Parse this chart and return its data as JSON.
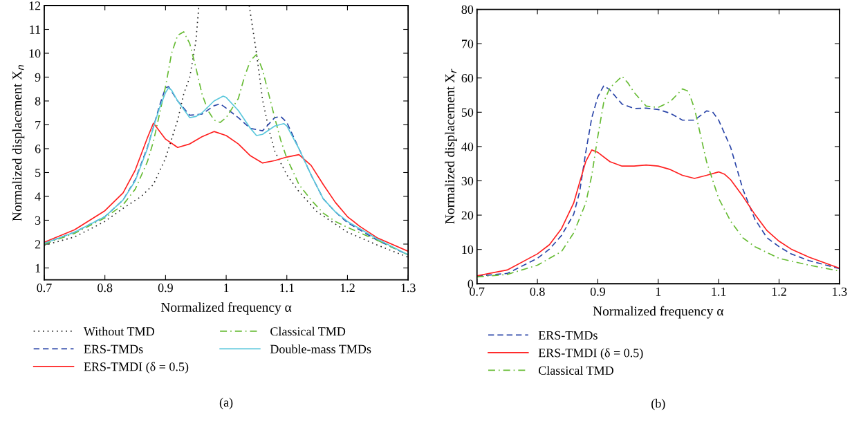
{
  "chart_data": [
    {
      "type": "line",
      "xlabel": "Normalized frequency α",
      "ylabel": "Normalized displacement X$_{n}$",
      "xlim": [
        0.7,
        1.3
      ],
      "ylim": [
        0.5,
        12
      ],
      "xticks": [
        {
          "value": 0.7,
          "label": "0.7"
        },
        {
          "value": 0.8,
          "label": "0.8"
        },
        {
          "value": 0.9,
          "label": "0.9"
        },
        1,
        {
          "value": 1.1,
          "label": "1.1"
        },
        {
          "value": 1.2,
          "label": "1.2"
        },
        {
          "value": 1.3,
          "label": "1.3"
        }
      ],
      "yticks": [
        1,
        2,
        3,
        4,
        5,
        6,
        7,
        8,
        9,
        10,
        11,
        12
      ],
      "grid": false,
      "legend": "bottom",
      "annotations": [
        "(a)"
      ],
      "series": [
        {
          "name": "Without TMD",
          "color": "#222222",
          "line_style": "dotted",
          "x": [
            0.7,
            0.75,
            0.8,
            0.83,
            0.86,
            0.88,
            0.9,
            0.92,
            0.93,
            0.94,
            0.95,
            0.955,
            1.0,
            1.038,
            1.05,
            1.06,
            1.07,
            1.08,
            1.1,
            1.12,
            1.15,
            1.2,
            1.25,
            1.3
          ],
          "values": [
            1.95,
            2.3,
            2.95,
            3.5,
            4.0,
            4.5,
            5.6,
            7.2,
            8.3,
            9.0,
            10.5,
            12,
            null,
            12,
            10,
            8.05,
            6.85,
            5.9,
            4.9,
            4.2,
            3.35,
            2.5,
            1.95,
            1.45
          ]
        },
        {
          "name": "ERS-TMDs",
          "color": "#2a45a8",
          "line_style": "dashed",
          "x": [
            0.7,
            0.75,
            0.8,
            0.83,
            0.85,
            0.87,
            0.88,
            0.89,
            0.9,
            0.905,
            0.92,
            0.94,
            0.96,
            0.98,
            0.99,
            1.0,
            1.02,
            1.04,
            1.06,
            1.08,
            1.09,
            1.1,
            1.12,
            1.14,
            1.16,
            1.18,
            1.2,
            1.25,
            1.3
          ],
          "values": [
            2.03,
            2.5,
            3.15,
            3.85,
            4.7,
            6.05,
            6.9,
            7.8,
            8.55,
            8.6,
            8.0,
            7.4,
            7.45,
            7.8,
            7.88,
            7.7,
            7.3,
            6.85,
            6.75,
            7.3,
            7.35,
            7.1,
            6.0,
            4.9,
            3.9,
            3.35,
            2.9,
            2.15,
            1.55
          ]
        },
        {
          "name": "ERS-TMDI (δ = 0.5)",
          "color": "#ff2020",
          "line_style": "solid",
          "x": [
            0.7,
            0.75,
            0.8,
            0.83,
            0.85,
            0.87,
            0.88,
            0.9,
            0.92,
            0.94,
            0.96,
            0.98,
            1.0,
            1.02,
            1.04,
            1.06,
            1.08,
            1.1,
            1.12,
            1.14,
            1.16,
            1.18,
            1.2,
            1.22,
            1.25,
            1.3
          ],
          "values": [
            2.08,
            2.6,
            3.4,
            4.15,
            5.1,
            6.45,
            7.07,
            6.4,
            6.05,
            6.2,
            6.5,
            6.72,
            6.55,
            6.2,
            5.7,
            5.4,
            5.5,
            5.65,
            5.75,
            5.3,
            4.5,
            3.75,
            3.15,
            2.75,
            2.25,
            1.7
          ]
        },
        {
          "name": "Classical TMD",
          "color": "#66bb33",
          "line_style": "dashdot",
          "x": [
            0.7,
            0.75,
            0.8,
            0.83,
            0.85,
            0.87,
            0.88,
            0.89,
            0.9,
            0.91,
            0.92,
            0.93,
            0.94,
            0.95,
            0.96,
            0.97,
            0.98,
            0.99,
            1.0,
            1.02,
            1.03,
            1.04,
            1.05,
            1.06,
            1.07,
            1.08,
            1.09,
            1.1,
            1.12,
            1.14,
            1.16,
            1.18,
            1.2,
            1.25,
            1.3
          ],
          "values": [
            2.0,
            2.45,
            3.1,
            3.65,
            4.3,
            5.45,
            6.3,
            7.45,
            8.6,
            10.0,
            10.75,
            10.9,
            10.4,
            9.4,
            8.3,
            7.6,
            7.2,
            7.1,
            7.3,
            8.1,
            9.0,
            9.7,
            9.95,
            9.3,
            8.3,
            7.3,
            6.35,
            5.6,
            4.5,
            3.85,
            3.3,
            2.95,
            2.7,
            2.15,
            1.55
          ]
        },
        {
          "name": "Double-mass TMDs",
          "color": "#5bc8dc",
          "line_style": "solid",
          "x": [
            0.7,
            0.75,
            0.8,
            0.83,
            0.85,
            0.87,
            0.88,
            0.89,
            0.9,
            0.905,
            0.91,
            0.92,
            0.94,
            0.95,
            0.96,
            0.98,
            0.995,
            1.0,
            1.02,
            1.04,
            1.05,
            1.06,
            1.08,
            1.095,
            1.1,
            1.12,
            1.14,
            1.16,
            1.18,
            1.2,
            1.25,
            1.3
          ],
          "values": [
            2.03,
            2.5,
            3.15,
            3.85,
            4.65,
            6.0,
            6.9,
            7.7,
            8.35,
            8.55,
            8.45,
            8.0,
            7.3,
            7.35,
            7.5,
            8.0,
            8.2,
            8.15,
            7.6,
            6.85,
            6.55,
            6.6,
            6.95,
            7.05,
            6.95,
            6.0,
            4.9,
            3.9,
            3.35,
            2.95,
            2.2,
            1.55
          ]
        }
      ]
    },
    {
      "type": "line",
      "xlabel": "Normalized frequency α",
      "ylabel": "Normalized displacement X$_{r}$",
      "xlim": [
        0.7,
        1.3
      ],
      "ylim": [
        0,
        80
      ],
      "xticks": [
        {
          "value": 0.7,
          "label": "0.7"
        },
        {
          "value": 0.8,
          "label": "0.8"
        },
        {
          "value": 0.9,
          "label": "0.9"
        },
        1,
        {
          "value": 1.1,
          "label": "1.1"
        },
        {
          "value": 1.2,
          "label": "1.2"
        },
        {
          "value": 1.3,
          "label": "1.3"
        }
      ],
      "yticks": [
        0,
        10,
        20,
        30,
        40,
        50,
        60,
        70,
        80
      ],
      "grid": false,
      "legend": "bottom",
      "annotations": [
        "(b)"
      ],
      "series": [
        {
          "name": "ERS-TMDs",
          "color": "#2a45a8",
          "line_style": "dashed",
          "x": [
            0.7,
            0.75,
            0.8,
            0.82,
            0.84,
            0.86,
            0.87,
            0.88,
            0.89,
            0.9,
            0.91,
            0.92,
            0.94,
            0.96,
            0.98,
            1.0,
            1.02,
            1.04,
            1.06,
            1.08,
            1.09,
            1.1,
            1.12,
            1.14,
            1.16,
            1.18,
            1.2,
            1.22,
            1.25,
            1.3
          ],
          "values": [
            2.2,
            3.0,
            7.4,
            10.1,
            14.1,
            20.2,
            26.9,
            38.3,
            48.4,
            54.5,
            57.8,
            56.5,
            52.4,
            51.1,
            51.2,
            50.8,
            49.7,
            47.7,
            47.7,
            50.4,
            50.1,
            47.7,
            39.7,
            27.6,
            18.8,
            13.4,
            10.8,
            8.7,
            6.7,
            4.4
          ]
        },
        {
          "name": "ERS-TMDI (δ = 0.5)",
          "color": "#ff2020",
          "line_style": "solid",
          "x": [
            0.7,
            0.75,
            0.8,
            0.82,
            0.84,
            0.86,
            0.87,
            0.88,
            0.89,
            0.9,
            0.92,
            0.94,
            0.96,
            0.98,
            1.0,
            1.02,
            1.04,
            1.06,
            1.08,
            1.1,
            1.11,
            1.12,
            1.14,
            1.16,
            1.18,
            1.2,
            1.22,
            1.25,
            1.3
          ],
          "values": [
            2.3,
            4.0,
            8.7,
            11.4,
            16.1,
            23.5,
            29.6,
            35.6,
            39.0,
            38.3,
            35.6,
            34.3,
            34.3,
            34.6,
            34.3,
            33.3,
            31.6,
            30.7,
            31.6,
            32.6,
            31.9,
            30.3,
            25.5,
            20.2,
            15.5,
            12.4,
            10.1,
            7.7,
            4.5
          ]
        },
        {
          "name": "Classical TMD",
          "color": "#66bb33",
          "line_style": "dashdot",
          "x": [
            0.7,
            0.75,
            0.8,
            0.82,
            0.84,
            0.86,
            0.88,
            0.89,
            0.9,
            0.91,
            0.92,
            0.94,
            0.95,
            0.96,
            0.98,
            1.0,
            1.02,
            1.04,
            1.05,
            1.06,
            1.08,
            1.1,
            1.12,
            1.14,
            1.16,
            1.2,
            1.25,
            1.3
          ],
          "values": [
            2.0,
            2.7,
            5.4,
            7.4,
            9.4,
            14.8,
            23.5,
            31.6,
            43.0,
            53.1,
            57.1,
            60.5,
            58.5,
            55.8,
            51.8,
            51.4,
            53.1,
            56.8,
            56.1,
            51.1,
            35.6,
            24.9,
            18.2,
            13.4,
            10.8,
            7.4,
            5.4,
            3.7
          ]
        }
      ]
    }
  ]
}
